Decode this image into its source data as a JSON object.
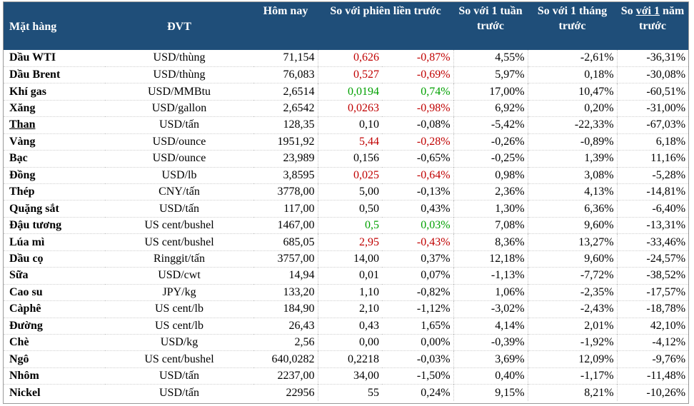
{
  "header": {
    "item": "Mặt hàng",
    "unit": "ĐVT",
    "today": "Hôm nay",
    "prev_session": "So với phiên liền trước",
    "week": "So với 1 tuần trước",
    "month": "So với 1 tháng trước",
    "year_pre": "So ",
    "year_ul": "với  1",
    "year_post": " năm trước"
  },
  "colors": {
    "header_bg": "#1f4e79",
    "red": "#c00000",
    "green": "#00a000"
  },
  "rows": [
    {
      "name": "Dầu WTI",
      "unit": "USD/thùng",
      "today": "71,154",
      "chg": "0,626",
      "pct": "-0,87%",
      "week": "4,55%",
      "month": "-2,61%",
      "year": "-36,31%",
      "color": "red"
    },
    {
      "name": "Dầu Brent",
      "unit": "USD/thùng",
      "today": "76,083",
      "chg": "0,527",
      "pct": "-0,69%",
      "week": "5,97%",
      "month": "0,18%",
      "year": "-30,08%",
      "color": "red"
    },
    {
      "name": "Khí gas",
      "unit": "USD/MMBtu",
      "today": "2,6514",
      "chg": "0,0194",
      "pct": "0,74%",
      "week": "17,00%",
      "month": "10,47%",
      "year": "-60,51%",
      "color": "green"
    },
    {
      "name": "Xăng",
      "unit": "USD/gallon",
      "today": "2,6542",
      "chg": "0,0263",
      "pct": "-0,98%",
      "week": "6,92%",
      "month": "0,20%",
      "year": "-31,00%",
      "color": "red"
    },
    {
      "name": "Than",
      "unit": "USD/tấn",
      "today": "128,35",
      "chg": "0,10",
      "pct": "-0,08%",
      "week": "-5,42%",
      "month": "-22,33%",
      "year": "-67,03%",
      "color": "",
      "underline": true
    },
    {
      "name": "Vàng",
      "unit": "USD/ounce",
      "today": "1951,92",
      "chg": "5,44",
      "pct": "-0,28%",
      "week": "-0,26%",
      "month": "-0,89%",
      "year": "6,18%",
      "color": "red"
    },
    {
      "name": "Bạc",
      "unit": "USD/ounce",
      "today": "23,989",
      "chg": "0,156",
      "pct": "-0,65%",
      "week": "-0,25%",
      "month": "1,39%",
      "year": "11,16%",
      "color": ""
    },
    {
      "name": "Đồng",
      "unit": "USD/lb",
      "today": "3,8595",
      "chg": "0,025",
      "pct": "-0,64%",
      "week": "0,98%",
      "month": "3,08%",
      "year": "-5,28%",
      "color": "red"
    },
    {
      "name": "Thép",
      "unit": "CNY/tấn",
      "today": "3778,00",
      "chg": "5,00",
      "pct": "-0,13%",
      "week": "2,36%",
      "month": "4,13%",
      "year": "-14,81%",
      "color": ""
    },
    {
      "name": "Quặng sắt",
      "unit": "USD/tấn",
      "today": "117,00",
      "chg": "0,50",
      "pct": "0,43%",
      "week": "1,30%",
      "month": "6,36%",
      "year": "-6,40%",
      "color": ""
    },
    {
      "name": "Đậu tương",
      "unit": "US cent/bushel",
      "today": "1467,00",
      "chg": "0,5",
      "pct": "0,03%",
      "week": "7,08%",
      "month": "9,60%",
      "year": "-13,31%",
      "color": "green"
    },
    {
      "name": "Lúa mì",
      "unit": "US cent/bushel",
      "today": "685,05",
      "chg": "2,95",
      "pct": "-0,43%",
      "week": "8,36%",
      "month": "13,27%",
      "year": "-33,46%",
      "color": "red"
    },
    {
      "name": "Dầu cọ",
      "unit": "Ringgit/tấn",
      "today": "3757,00",
      "chg": "14,00",
      "pct": "0,37%",
      "week": "12,18%",
      "month": "9,60%",
      "year": "-24,57%",
      "color": ""
    },
    {
      "name": "Sữa",
      "unit": "USD/cwt",
      "today": "14,94",
      "chg": "0,01",
      "pct": "0,07%",
      "week": "-1,13%",
      "month": "-7,72%",
      "year": "-38,52%",
      "color": ""
    },
    {
      "name": "Cao su",
      "unit": "JPY/kg",
      "today": "133,20",
      "chg": "1,10",
      "pct": "-0,82%",
      "week": "1,06%",
      "month": "-2,35%",
      "year": "-17,57%",
      "color": ""
    },
    {
      "name": "Càphê",
      "unit": "US cent/lb",
      "today": "184,90",
      "chg": "2,10",
      "pct": "-1,12%",
      "week": "-3,02%",
      "month": "-2,43%",
      "year": "-18,78%",
      "color": ""
    },
    {
      "name": "Đường",
      "unit": "US cent/lb",
      "today": "26,43",
      "chg": "0,43",
      "pct": "1,65%",
      "week": "4,14%",
      "month": "2,01%",
      "year": "42,10%",
      "color": ""
    },
    {
      "name": "Chè",
      "unit": "USD/kg",
      "today": "2,56",
      "chg": "0,00",
      "pct": "0,00%",
      "week": "-0,39%",
      "month": "-1,92%",
      "year": "-4,12%",
      "color": ""
    },
    {
      "name": "Ngô",
      "unit": "US cent/bushel",
      "today": "640,0282",
      "chg": "0,2218",
      "pct": "-0,03%",
      "week": "3,69%",
      "month": "12,09%",
      "year": "-9,76%",
      "color": ""
    },
    {
      "name": "Nhôm",
      "unit": "USD/tấn",
      "today": "2237,00",
      "chg": "34,00",
      "pct": "-1,50%",
      "week": "0,40%",
      "month": "-1,17%",
      "year": "-11,48%",
      "color": ""
    },
    {
      "name": "Nickel",
      "unit": "USD/tấn",
      "today": "22956",
      "chg": "55",
      "pct": "0,24%",
      "week": "9,15%",
      "month": "8,21%",
      "year": "-10,26%",
      "color": ""
    }
  ]
}
